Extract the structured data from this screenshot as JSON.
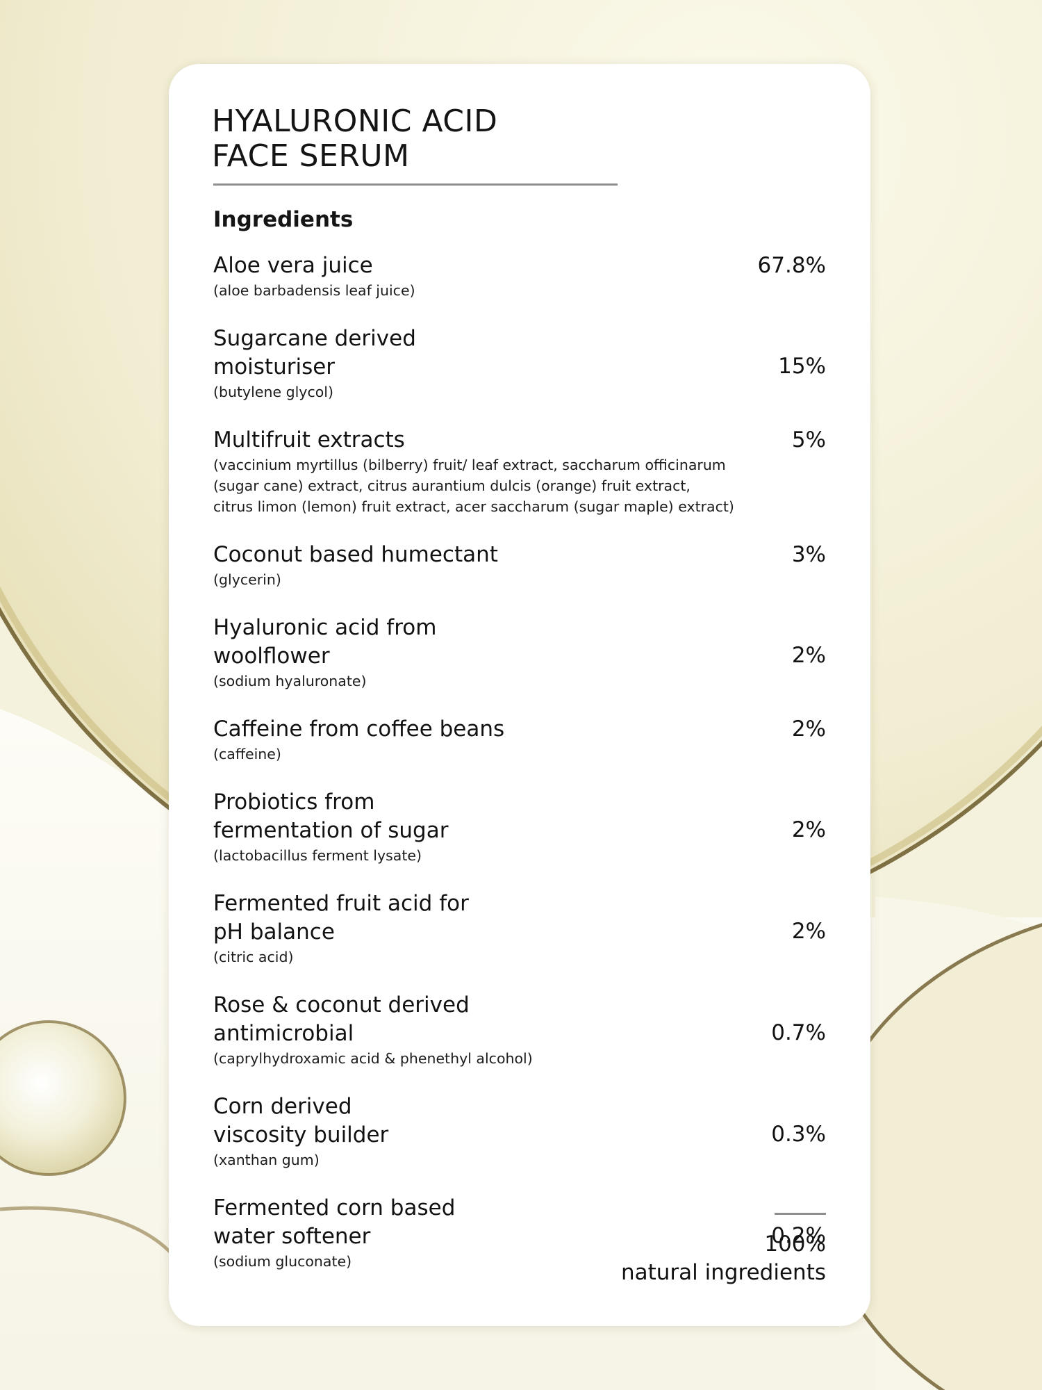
{
  "card": {
    "title_line1": "HYALURONIC ACID",
    "title_line2": "FACE SERUM",
    "ingredients_heading": "Ingredients",
    "ingredients": [
      {
        "name": "Aloe vera juice",
        "inci": "(aloe barbadensis leaf juice)",
        "percent": "67.8%"
      },
      {
        "name": "Sugarcane derived moisturiser",
        "inci": "(butylene glycol)",
        "percent": "15%"
      },
      {
        "name": "Multifruit extracts",
        "inci": "(vaccinium myrtillus (bilberry) fruit/ leaf extract, saccharum officinarum (sugar cane) extract, citrus aurantium dulcis (orange) fruit extract, citrus limon (lemon) fruit extract, acer saccharum (sugar maple) extract)",
        "percent": "5%"
      },
      {
        "name": "Coconut based humectant",
        "inci": "(glycerin)",
        "percent": "3%"
      },
      {
        "name": "Hyaluronic acid from woolflower",
        "inci": "(sodium hyaluronate)",
        "percent": "2%"
      },
      {
        "name": "Caffeine from coffee beans",
        "inci": "(caffeine)",
        "percent": "2%"
      },
      {
        "name": "Probiotics from fermentation of sugar",
        "inci": "(lactobacillus ferment lysate)",
        "percent": "2%"
      },
      {
        "name": "Fermented fruit acid for pH balance",
        "inci": "(citric acid)",
        "percent": "2%"
      },
      {
        "name": "Rose & coconut derived antimicrobial",
        "inci": "(caprylhydroxamic acid & phenethyl alcohol)",
        "percent": "0.7%"
      },
      {
        "name": "Corn derived viscosity builder",
        "inci": "(xanthan gum)",
        "percent": "0.3%"
      },
      {
        "name": "Fermented corn based water softener",
        "inci": "(sodium gluconate)",
        "percent": "0.2%"
      }
    ],
    "total_percent": "100%",
    "total_label": "natural ingredients"
  },
  "colors": {
    "background": "#f4f1dc",
    "card": "#ffffff",
    "text": "#121212",
    "rule": "#8e8e8e",
    "gold_rim": "#6b5a2a"
  }
}
